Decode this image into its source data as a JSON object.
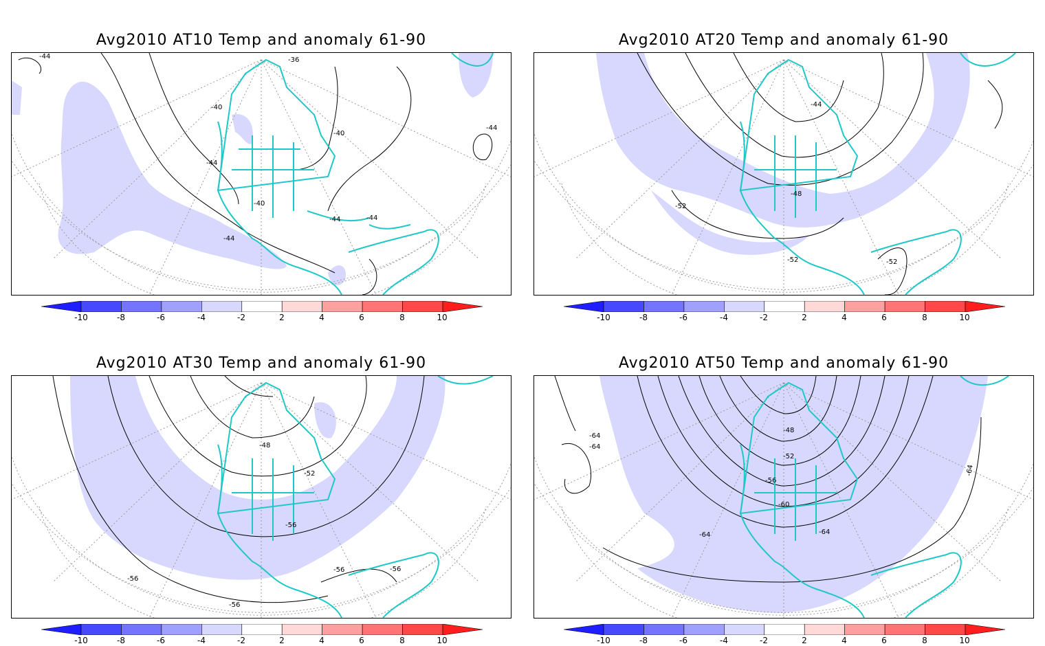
{
  "panels": [
    {
      "title": "Avg2010 AT10 Temp and anomaly 61-90",
      "contour_labels": [
        "-44",
        "-36",
        "-40",
        "-40",
        "-44",
        "-44",
        "-40",
        "-44",
        "-44",
        "-44"
      ]
    },
    {
      "title": "Avg2010 AT20 Temp and anomaly 61-90",
      "contour_labels": [
        "-44",
        "-48",
        "-52",
        "-52",
        "-52"
      ]
    },
    {
      "title": "Avg2010 AT30 Temp and anomaly 61-90",
      "contour_labels": [
        "-48",
        "-52",
        "-56",
        "-56",
        "-56",
        "-56",
        "-56"
      ]
    },
    {
      "title": "Avg2010 AT50 Temp and anomaly 61-90",
      "contour_labels": [
        "-64",
        "-64",
        "-48",
        "-52",
        "-56",
        "-60",
        "-64",
        "-64",
        "-64"
      ]
    }
  ],
  "colorbar": {
    "tick_labels": [
      "-10",
      "-8",
      "-6",
      "-4",
      "-2",
      "2",
      "4",
      "6",
      "8",
      "10"
    ],
    "colors": [
      "#1e1eff",
      "#4848ff",
      "#7474ff",
      "#a0a0ff",
      "#d8d8ff",
      "#ffffff",
      "#ffd8d8",
      "#ffa0a0",
      "#ff7474",
      "#ff4848",
      "#ff1e1e"
    ]
  },
  "colors": {
    "anomaly_fill": "#d8d8ff",
    "coastline": "#1fc8c8",
    "contour": "#000000",
    "grid": "#9a9a9a"
  }
}
